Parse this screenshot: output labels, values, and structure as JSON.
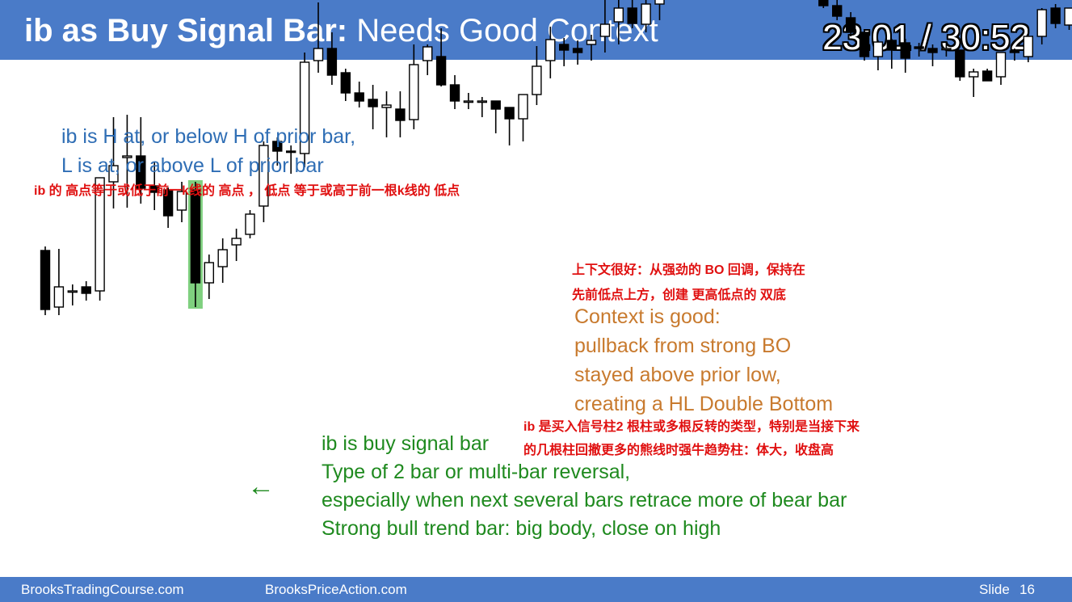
{
  "slide": {
    "title_bold": "ib as Buy Signal Bar:",
    "title_rest": " Needs Good Context",
    "timer": "23:01 / 30:52"
  },
  "annotations": {
    "ib_definition_line1": "ib is H at, or below H of prior bar,",
    "ib_definition_line2": "L is at, or above L of prior bar",
    "ib_definition_chinese": "ib 的 高点等于或低于前一k线的 高点 ， 低点 等于或高于前一根k线的 低点",
    "context_chinese_line1": "上下文很好：从强劲的 BO 回调，保持在",
    "context_chinese_line2": "先前低点上方，创建 更高低点的 双底",
    "context_line1": "Context is good:",
    "context_line2": "pullback from strong BO",
    "context_line3": "stayed above prior low,",
    "context_line4": "creating a HL Double Bottom",
    "signal_chinese_line1": "ib 是买入信号柱2 根柱或多根反转的类型，特别是当接下来",
    "signal_chinese_line2": "的几根柱回撤更多的熊线时强牛趋势柱：体大，收盘高",
    "signal_line1": "ib is buy signal bar",
    "signal_line2": "Type of 2 bar or multi-bar reversal,",
    "signal_line3": "especially when next several bars retrace more of bear bar",
    "signal_line4": "Strong bull trend bar: big body, close on high",
    "arrow_glyph": "←"
  },
  "footer": {
    "left": "BrooksTradingCourse.com",
    "center": "BrooksPriceAction.com",
    "slide_label": "Slide",
    "slide_number": "16"
  },
  "colors": {
    "header": "#4a7bc8",
    "title_text": "#ffffff",
    "blue_text": "#2f6eb5",
    "red_text": "#e01010",
    "orange_text": "#c87a2e",
    "green_text": "#1f8a1f",
    "highlight": "#7fd07f",
    "candle": "#000000"
  },
  "chart_data": {
    "type": "candlestick",
    "y_axis": "price (inverted screen scale, arbitrary units)",
    "highlighted_bar_index": 11,
    "bars": [
      {
        "o": 435,
        "h": 440,
        "l": 355,
        "c": 362
      },
      {
        "o": 365,
        "h": 437,
        "l": 355,
        "c": 390
      },
      {
        "o": 385,
        "h": 393,
        "l": 367,
        "c": 385
      },
      {
        "o": 390,
        "h": 397,
        "l": 373,
        "c": 382
      },
      {
        "o": 385,
        "h": 395,
        "l": 373,
        "c": 525
      },
      {
        "o": 520,
        "h": 600,
        "l": 487,
        "c": 540
      },
      {
        "o": 550,
        "h": 603,
        "l": 488,
        "c": 552
      },
      {
        "o": 552,
        "h": 600,
        "l": 493,
        "c": 512
      },
      {
        "o": 515,
        "h": 545,
        "l": 485,
        "c": 507
      },
      {
        "o": 510,
        "h": 513,
        "l": 463,
        "c": 478
      },
      {
        "o": 485,
        "h": 520,
        "l": 470,
        "c": 508
      },
      {
        "o": 510,
        "h": 520,
        "l": 365,
        "c": 395
      },
      {
        "o": 395,
        "h": 430,
        "l": 375,
        "c": 420
      },
      {
        "o": 415,
        "h": 450,
        "l": 395,
        "c": 436
      },
      {
        "o": 442,
        "h": 462,
        "l": 422,
        "c": 450
      },
      {
        "o": 455,
        "h": 485,
        "l": 450,
        "c": 480
      },
      {
        "o": 490,
        "h": 570,
        "l": 470,
        "c": 565
      },
      {
        "o": 570,
        "h": 575,
        "l": 540,
        "c": 558
      },
      {
        "o": 558,
        "h": 565,
        "l": 530,
        "c": 557
      },
      {
        "o": 555,
        "h": 680,
        "l": 538,
        "c": 668
      },
      {
        "o": 670,
        "h": 742,
        "l": 655,
        "c": 685
      },
      {
        "o": 685,
        "h": 705,
        "l": 640,
        "c": 652
      },
      {
        "o": 655,
        "h": 660,
        "l": 620,
        "c": 630
      },
      {
        "o": 630,
        "h": 644,
        "l": 612,
        "c": 620
      },
      {
        "o": 622,
        "h": 640,
        "l": 585,
        "c": 613
      },
      {
        "o": 612,
        "h": 632,
        "l": 575,
        "c": 615
      },
      {
        "o": 610,
        "h": 632,
        "l": 575,
        "c": 596
      },
      {
        "o": 597,
        "h": 690,
        "l": 585,
        "c": 665
      },
      {
        "o": 670,
        "h": 690,
        "l": 652,
        "c": 687
      },
      {
        "o": 675,
        "h": 710,
        "l": 638,
        "c": 640
      },
      {
        "o": 640,
        "h": 652,
        "l": 610,
        "c": 620
      },
      {
        "o": 620,
        "h": 630,
        "l": 610,
        "c": 620
      },
      {
        "o": 620,
        "h": 625,
        "l": 600,
        "c": 620
      },
      {
        "o": 620,
        "h": 620,
        "l": 580,
        "c": 610
      },
      {
        "o": 612,
        "h": 605,
        "l": 565,
        "c": 598
      },
      {
        "o": 598,
        "h": 607,
        "l": 570,
        "c": 628
      },
      {
        "o": 628,
        "h": 688,
        "l": 615,
        "c": 663
      },
      {
        "o": 670,
        "h": 712,
        "l": 648,
        "c": 696
      },
      {
        "o": 690,
        "h": 698,
        "l": 663,
        "c": 683
      },
      {
        "o": 685,
        "h": 695,
        "l": 665,
        "c": 680
      },
      {
        "o": 690,
        "h": 702,
        "l": 670,
        "c": 695
      },
      {
        "o": 700,
        "h": 760,
        "l": 680,
        "c": 715
      },
      {
        "o": 718,
        "h": 765,
        "l": 690,
        "c": 735
      },
      {
        "o": 735,
        "h": 750,
        "l": 710,
        "c": 716
      },
      {
        "o": 715,
        "h": 770,
        "l": 705,
        "c": 740
      },
      {
        "o": 740,
        "h": 853,
        "l": 720,
        "c": 823
      },
      {
        "o": 822,
        "h": 840,
        "l": 810,
        "c": 820
      },
      {
        "o": 820,
        "h": 862,
        "l": 808,
        "c": 840
      },
      {
        "o": 837,
        "h": 843,
        "l": 773,
        "c": 783
      },
      {
        "o": 783,
        "h": 800,
        "l": 773,
        "c": 780
      },
      {
        "o": 778,
        "h": 800,
        "l": 758,
        "c": 772
      },
      {
        "o": 775,
        "h": 790,
        "l": 765,
        "c": 790
      },
      {
        "o": 790,
        "h": 796,
        "l": 765,
        "c": 788
      },
      {
        "o": 788,
        "h": 790,
        "l": 768,
        "c": 775
      },
      {
        "o": 780,
        "h": 792,
        "l": 758,
        "c": 780
      },
      {
        "o": 782,
        "h": 785,
        "l": 765,
        "c": 770
      },
      {
        "o": 770,
        "h": 770,
        "l": 745,
        "c": 750
      },
      {
        "o": 750,
        "h": 760,
        "l": 735,
        "c": 738
      },
      {
        "o": 738,
        "h": 745,
        "l": 720,
        "c": 725
      },
      {
        "o": 723,
        "h": 730,
        "l": 700,
        "c": 705
      },
      {
        "o": 705,
        "h": 705,
        "l": 670,
        "c": 675
      },
      {
        "o": 675,
        "h": 695,
        "l": 658,
        "c": 693
      },
      {
        "o": 695,
        "h": 697,
        "l": 660,
        "c": 683
      },
      {
        "o": 692,
        "h": 697,
        "l": 655,
        "c": 673
      },
      {
        "o": 687,
        "h": 692,
        "l": 675,
        "c": 685
      },
      {
        "o": 685,
        "h": 690,
        "l": 663,
        "c": 680
      },
      {
        "o": 685,
        "h": 693,
        "l": 675,
        "c": 685
      },
      {
        "o": 683,
        "h": 683,
        "l": 645,
        "c": 650
      },
      {
        "o": 650,
        "h": 660,
        "l": 625,
        "c": 656
      },
      {
        "o": 657,
        "h": 660,
        "l": 645,
        "c": 645
      },
      {
        "o": 650,
        "h": 660,
        "l": 640,
        "c": 680
      },
      {
        "o": 682,
        "h": 685,
        "l": 670,
        "c": 680
      },
      {
        "o": 675,
        "h": 708,
        "l": 668,
        "c": 700
      },
      {
        "o": 700,
        "h": 735,
        "l": 690,
        "c": 733
      },
      {
        "o": 735,
        "h": 740,
        "l": 710,
        "c": 716
      },
      {
        "o": 714,
        "h": 735,
        "l": 708,
        "c": 735
      },
      {
        "o": 728,
        "h": 768,
        "l": 710,
        "c": 757
      }
    ]
  }
}
